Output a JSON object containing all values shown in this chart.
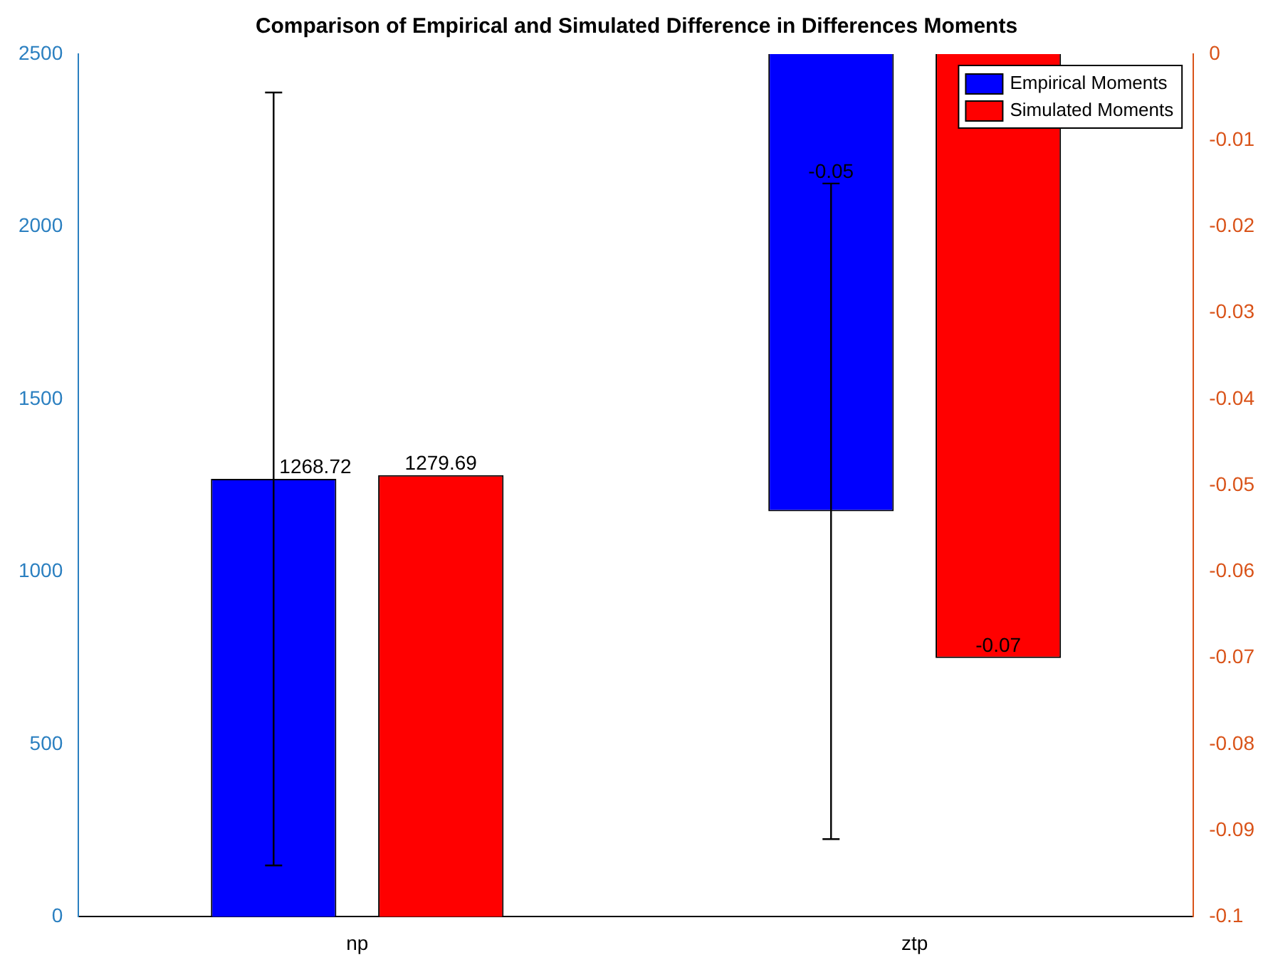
{
  "chart_data": {
    "type": "bar",
    "title": "Comparison of Empirical and Simulated Difference in Differences Moments",
    "categories": [
      "np",
      "ztp"
    ],
    "series": [
      {
        "name": "Empirical Moments",
        "color": "#0000ff",
        "values": [
          1268.72,
          null
        ],
        "errors": [
          1120,
          null
        ],
        "value_labels": [
          "1268.72",
          null
        ]
      },
      {
        "name": "Simulated Moments",
        "color": "#ff0000",
        "values": [
          1279.69,
          null
        ],
        "value_labels": [
          "1279.69",
          null
        ]
      },
      {
        "color": "#0000ff",
        "axis": "y2",
        "values": [
          null,
          -0.053
        ],
        "errors": [
          null,
          0.038
        ],
        "value_labels": [
          null,
          "-0.05"
        ]
      },
      {
        "color": "#ff0000",
        "axis": "y2",
        "values": [
          null,
          -0.07
        ],
        "value_labels": [
          null,
          "-0.07"
        ]
      }
    ],
    "ylim": [
      0,
      2500
    ],
    "yticks": [
      0,
      500,
      1000,
      1500,
      2000,
      2500
    ],
    "y2lim": [
      -0.1,
      0
    ],
    "y2ticks": [
      -0.1,
      -0.09,
      -0.08,
      -0.07,
      -0.06,
      -0.05,
      -0.04,
      -0.03,
      -0.02,
      -0.01,
      0
    ],
    "legend": "top right",
    "grid": false
  }
}
